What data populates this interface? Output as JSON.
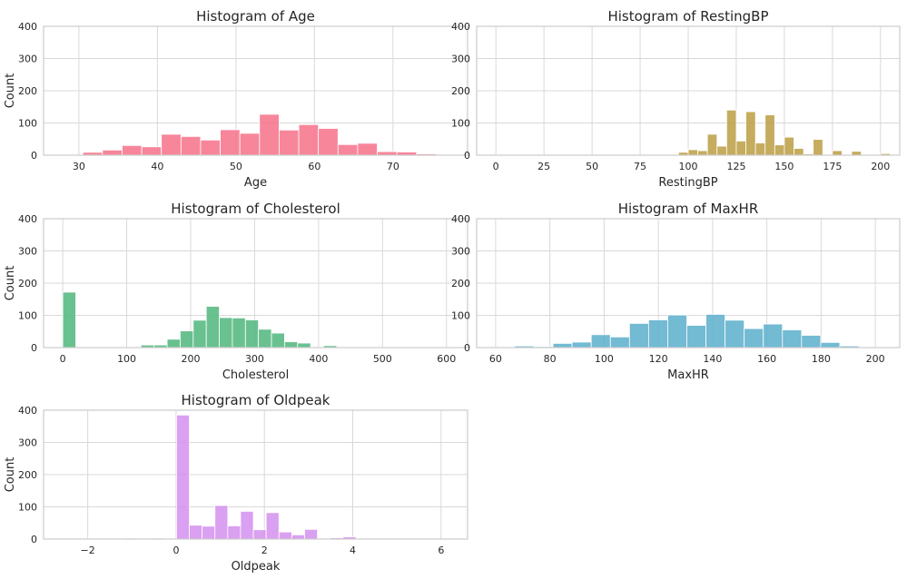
{
  "chart_data": [
    {
      "type": "bar",
      "title": "Histogram of Age",
      "xlabel": "Age",
      "ylabel": "Count",
      "xlim": [
        25.5,
        79.5
      ],
      "ylim": [
        0,
        400
      ],
      "xticks": [
        30,
        40,
        50,
        60,
        70
      ],
      "yticks": [
        0,
        100,
        200,
        300,
        400
      ],
      "color": "#f77189",
      "bin_start": 28,
      "bin_width": 2.5,
      "values": [
        0,
        9,
        16,
        30,
        26,
        65,
        58,
        47,
        79,
        68,
        127,
        78,
        95,
        83,
        33,
        37,
        11,
        10,
        4,
        0
      ]
    },
    {
      "type": "bar",
      "title": "Histogram of RestingBP",
      "xlabel": "RestingBP",
      "ylabel": "",
      "xlim": [
        -10,
        210
      ],
      "ylim": [
        0,
        400
      ],
      "xticks": [
        0,
        25,
        50,
        75,
        100,
        125,
        150,
        175,
        200
      ],
      "yticks": [
        0,
        100,
        200,
        300,
        400
      ],
      "color": "#bb9d42",
      "bin_start": 0,
      "bin_width": 5,
      "values": [
        1,
        0,
        0,
        0,
        0,
        0,
        0,
        0,
        0,
        0,
        0,
        0,
        0,
        0,
        0,
        0,
        0,
        0,
        0,
        9,
        17,
        14,
        65,
        28,
        140,
        44,
        135,
        38,
        125,
        32,
        56,
        21,
        4,
        49,
        0,
        14,
        0,
        12,
        0,
        0,
        5
      ]
    },
    {
      "type": "bar",
      "title": "Histogram of Cholesterol",
      "xlabel": "Cholesterol",
      "ylabel": "Count",
      "xlim": [
        -30,
        633
      ],
      "ylim": [
        0,
        400
      ],
      "xticks": [
        0,
        100,
        200,
        300,
        400,
        500,
        600
      ],
      "yticks": [
        0,
        100,
        200,
        300,
        400
      ],
      "color": "#50b67d",
      "bin_start": 0,
      "bin_width": 20.4,
      "values": [
        172,
        0,
        0,
        0,
        0,
        1,
        8,
        8,
        26,
        52,
        85,
        128,
        93,
        92,
        86,
        57,
        45,
        18,
        14,
        2,
        6,
        0,
        0,
        0,
        0,
        0,
        0,
        0,
        0,
        1
      ]
    },
    {
      "type": "bar",
      "title": "Histogram of MaxHR",
      "xlabel": "MaxHR",
      "ylabel": "",
      "xlim": [
        53,
        209
      ],
      "ylim": [
        0,
        400
      ],
      "xticks": [
        60,
        80,
        100,
        120,
        140,
        160,
        180,
        200
      ],
      "yticks": [
        0,
        100,
        200,
        300,
        400
      ],
      "color": "#5aaecb",
      "bin_start": 60,
      "bin_width": 7.05,
      "values": [
        1,
        5,
        3,
        13,
        17,
        40,
        33,
        75,
        86,
        101,
        69,
        103,
        85,
        59,
        73,
        55,
        38,
        16,
        5,
        1
      ]
    },
    {
      "type": "bar",
      "title": "Histogram of Oldpeak",
      "xlabel": "Oldpeak",
      "ylabel": "Count",
      "xlim": [
        -3.0,
        6.6
      ],
      "ylim": [
        0,
        400
      ],
      "xticks": [
        -2,
        0,
        2,
        4,
        6
      ],
      "yticks": [
        0,
        100,
        200,
        300,
        400
      ],
      "color": "#d38fef",
      "bin_start": -2.6,
      "bin_width": 0.29,
      "values": [
        1,
        0,
        1,
        0,
        0,
        3,
        1,
        3,
        0,
        385,
        43,
        40,
        104,
        41,
        86,
        29,
        82,
        22,
        13,
        30,
        2,
        4,
        7,
        2,
        1,
        0,
        0,
        0,
        0,
        1
      ]
    }
  ]
}
